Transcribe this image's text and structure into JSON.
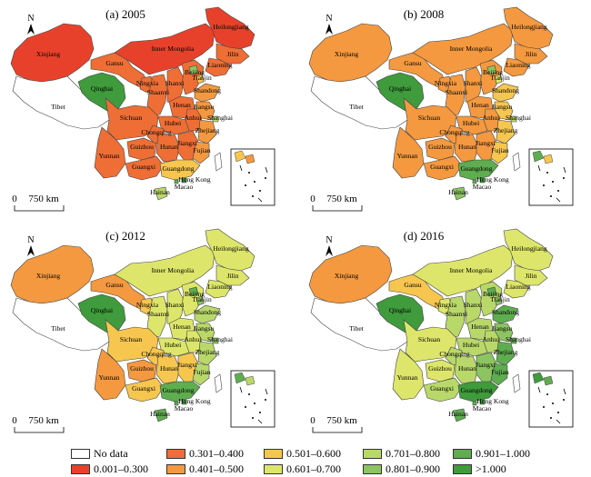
{
  "panels": [
    {
      "title": "(a) 2005",
      "provinces": {
        "Xinjiang": "c1",
        "Tibet": "c0",
        "Qinghai": "c9",
        "Gansu": "c2",
        "Inner Mongolia": "c1",
        "Heilongjiang": "c1",
        "Jilin": "c2",
        "Liaoning": "c2",
        "Ningxia": "c2",
        "Shaanxi": "c2",
        "Shanxi": "c2",
        "Hebei": "c2",
        "Beijing": "c7",
        "Tianjin": "c4",
        "Shandong": "c3",
        "Henan": "c2",
        "Jiangsu": "c3",
        "Shanghai": "c6",
        "Anhui": "c2",
        "Hubei": "c2",
        "Sichuan": "c2",
        "Chongqing": "c2",
        "Yunnan": "c2",
        "Guizhou": "c2",
        "Hunan": "c2",
        "Jiangxi": "c2",
        "Zhejiang": "c3",
        "Fujian": "c3",
        "Guangxi": "c2",
        "Guangdong": "c4",
        "Hainan": "c6",
        "HongKong": "c9",
        "Macao": "c8",
        "Taiwan": "c0"
      }
    },
    {
      "title": "(b) 2008",
      "provinces": {
        "Xinjiang": "c3",
        "Tibet": "c0",
        "Qinghai": "c9",
        "Gansu": "c3",
        "Inner Mongolia": "c3",
        "Heilongjiang": "c3",
        "Jilin": "c3",
        "Liaoning": "c3",
        "Ningxia": "c3",
        "Shaanxi": "c3",
        "Shanxi": "c3",
        "Hebei": "c3",
        "Beijing": "c7",
        "Tianjin": "c5",
        "Shandong": "c4",
        "Henan": "c3",
        "Jiangsu": "c4",
        "Shanghai": "c6",
        "Anhui": "c3",
        "Hubei": "c3",
        "Sichuan": "c3",
        "Chongqing": "c3",
        "Yunnan": "c3",
        "Guizhou": "c3",
        "Hunan": "c3",
        "Jiangxi": "c3",
        "Zhejiang": "c4",
        "Fujian": "c4",
        "Guangxi": "c3",
        "Guangdong": "c8",
        "Hainan": "c7",
        "HongKong": "c9",
        "Macao": "c8",
        "Taiwan": "c0"
      }
    },
    {
      "title": "(c) 2012",
      "provinces": {
        "Xinjiang": "c3",
        "Tibet": "c0",
        "Qinghai": "c9",
        "Gansu": "c3",
        "Inner Mongolia": "c5",
        "Heilongjiang": "c5",
        "Jilin": "c5",
        "Liaoning": "c5",
        "Ningxia": "c4",
        "Shaanxi": "c5",
        "Shanxi": "c5",
        "Hebei": "c5",
        "Beijing": "c8",
        "Tianjin": "c7",
        "Shandong": "c6",
        "Henan": "c5",
        "Jiangsu": "c6",
        "Shanghai": "c7",
        "Anhui": "c5",
        "Hubei": "c5",
        "Sichuan": "c4",
        "Chongqing": "c4",
        "Yunnan": "c3",
        "Guizhou": "c3",
        "Hunan": "c4",
        "Jiangxi": "c4",
        "Zhejiang": "c6",
        "Fujian": "c6",
        "Guangxi": "c4",
        "Guangdong": "c8",
        "Hainan": "c8",
        "HongKong": "c9",
        "Macao": "c8",
        "Taiwan": "c0"
      }
    },
    {
      "title": "(d) 2016",
      "provinces": {
        "Xinjiang": "c3",
        "Tibet": "c0",
        "Qinghai": "c9",
        "Gansu": "c4",
        "Inner Mongolia": "c5",
        "Heilongjiang": "c5",
        "Jilin": "c5",
        "Liaoning": "c5",
        "Ningxia": "c5",
        "Shaanxi": "c6",
        "Shanxi": "c6",
        "Hebei": "c6",
        "Beijing": "c8",
        "Tianjin": "c7",
        "Shandong": "c8",
        "Henan": "c6",
        "Jiangsu": "c7",
        "Shanghai": "c8",
        "Anhui": "c6",
        "Hubei": "c6",
        "Sichuan": "c5",
        "Chongqing": "c6",
        "Yunnan": "c5",
        "Guizhou": "c5",
        "Hunan": "c6",
        "Jiangxi": "c7",
        "Zhejiang": "c8",
        "Fujian": "c8",
        "Guangxi": "c6",
        "Guangdong": "c9",
        "Hainan": "c8",
        "HongKong": "c9",
        "Macao": "c8",
        "Taiwan": "c0"
      }
    }
  ],
  "north_label": "N",
  "scale_zero": "0",
  "scale_label": "750 km",
  "place_labels": {
    "HongKong": "Hong Kong",
    "Macao": "Macao"
  },
  "legend": [
    {
      "key": "c0",
      "label": "No data",
      "color": "#ffffff"
    },
    {
      "key": "c1",
      "label": "0.001–0.300",
      "color": "#e8412b"
    },
    {
      "key": "c2",
      "label": "0.301–0.400",
      "color": "#ee6e35"
    },
    {
      "key": "c3",
      "label": "0.401–0.500",
      "color": "#f4993f"
    },
    {
      "key": "c4",
      "label": "0.501–0.600",
      "color": "#f6c64f"
    },
    {
      "key": "c5",
      "label": "0.601–0.700",
      "color": "#dde66a"
    },
    {
      "key": "c6",
      "label": "0.701–0.800",
      "color": "#b9d86a"
    },
    {
      "key": "c7",
      "label": "0.801–0.900",
      "color": "#8cc461"
    },
    {
      "key": "c8",
      "label": "0.901–1.000",
      "color": "#5ead4f"
    },
    {
      "key": "c9",
      "label": ">1.000",
      "color": "#3f9b3c"
    }
  ]
}
